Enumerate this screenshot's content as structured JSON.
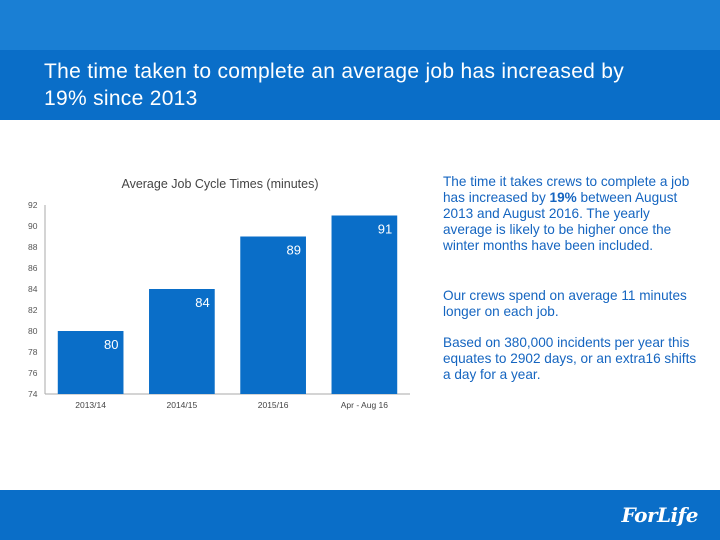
{
  "slide": {
    "title": "The time taken to complete an average job has increased by 19% since 2013",
    "logo": "ForLife"
  },
  "text": {
    "p1_before": "The time it takes crews to complete a job has increased by ",
    "p1_bold": "19%",
    "p1_after": " between August 2013 and August 2016. The yearly average is likely to be higher once the winter months have been included.",
    "p2": "Our crews spend on average 11 minutes longer on each job.",
    "p3": "Based on 380,000 incidents per year this equates to 2902 days, or an extra16 shifts a day for a year."
  },
  "colors": {
    "bar": "#0a6ec8",
    "band": "#0a6ec8",
    "strip": "#1a7fd4",
    "text": "#1565c0"
  },
  "chart_data": {
    "type": "bar",
    "title": "Average Job Cycle Times (minutes)",
    "categories": [
      "2013/14",
      "2014/15",
      "2015/16",
      "Apr - Aug 16"
    ],
    "values": [
      80,
      84,
      89,
      91
    ],
    "value_labels": [
      "80",
      "84",
      "89",
      "91"
    ],
    "ylim": [
      74,
      92
    ],
    "yticks": [
      74,
      76,
      78,
      80,
      82,
      84,
      86,
      88,
      90,
      92
    ],
    "ytick_labels": [
      "74",
      "76",
      "78",
      "80",
      "82",
      "84",
      "86",
      "88",
      "90",
      "92"
    ],
    "xlabel": "",
    "ylabel": "",
    "grid": false,
    "legend": "none"
  }
}
